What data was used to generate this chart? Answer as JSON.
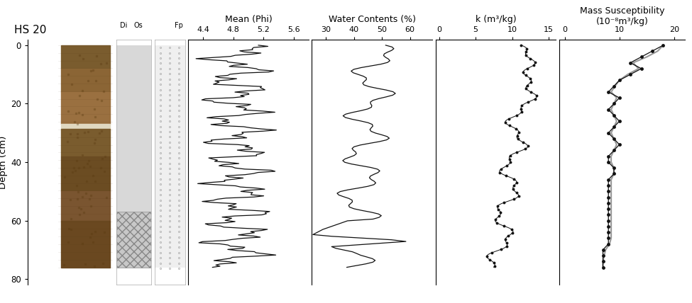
{
  "title": "HS 20",
  "depth_min": 0,
  "depth_max": 80,
  "depth_ticks": [
    0,
    20,
    40,
    60,
    80
  ],
  "mean_phi_xlabel": "Mean (Phi)",
  "mean_phi_xlim": [
    4.2,
    5.8
  ],
  "mean_phi_xticks": [
    4.4,
    4.8,
    5.2,
    5.6
  ],
  "water_content_xlabel": "Water Contents (%)",
  "water_content_xlim": [
    25,
    68
  ],
  "water_content_xticks": [
    30,
    40,
    50,
    60
  ],
  "k_xlabel": "k (m³/kg)",
  "k_xlim": [
    -0.5,
    16
  ],
  "k_xticks": [
    0,
    5,
    10,
    15
  ],
  "mass_susc_xlabel": "Mass Susceptibility",
  "mass_susc_xlabel2": "(10⁻⁸m³/kg)",
  "mass_susc_xlim": [
    -1,
    22
  ],
  "mass_susc_xticks": [
    0,
    10,
    20
  ],
  "background_color": "#ffffff",
  "line_color": "#111111"
}
